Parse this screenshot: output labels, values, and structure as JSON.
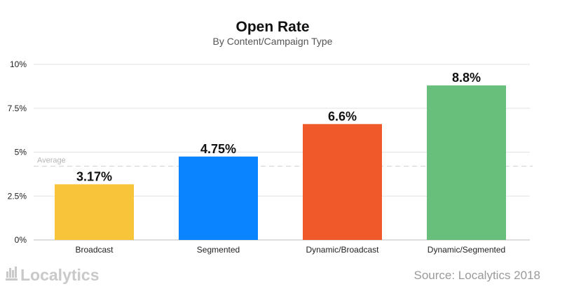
{
  "chart_data": {
    "type": "bar",
    "title": "Open Rate",
    "subtitle": "By Content/Campaign Type",
    "categories": [
      "Broadcast",
      "Segmented",
      "Dynamic/Broadcast",
      "Dynamic/Segmented"
    ],
    "values": [
      3.17,
      4.75,
      6.6,
      8.8
    ],
    "value_labels": [
      "3.17%",
      "4.75%",
      "6.6%",
      "8.8%"
    ],
    "colors": [
      "#f8c53a",
      "#0a84ff",
      "#f05a2a",
      "#68bf7c"
    ],
    "ylim": [
      0,
      10
    ],
    "yticks": [
      0,
      2.5,
      5,
      7.5,
      10
    ],
    "ytick_labels": [
      "0%",
      "2.5%",
      "5%",
      "7.5%",
      "10%"
    ],
    "grid": true,
    "reference_line": {
      "label": "Average",
      "value": 4.2,
      "style": "dashed"
    },
    "xlabel": "",
    "ylabel": ""
  },
  "footer": {
    "logo_text": "Localytics",
    "source": "Source: Localytics 2018"
  }
}
